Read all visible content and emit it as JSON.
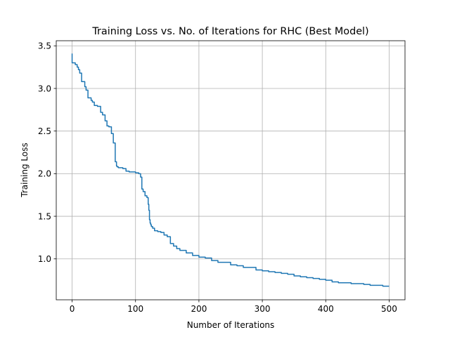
{
  "chart_data": {
    "type": "line",
    "title": "Training Loss vs. No. of Iterations for RHC (Best Model)",
    "xlabel": "Number of Iterations",
    "ylabel": "Training Loss",
    "xlim": [
      -25,
      525
    ],
    "ylim": [
      0.52,
      3.56
    ],
    "xticks": [
      0,
      100,
      200,
      300,
      400,
      500
    ],
    "xtick_labels": [
      "0",
      "100",
      "200",
      "300",
      "400",
      "500"
    ],
    "yticks": [
      1.0,
      1.5,
      2.0,
      2.5,
      3.0,
      3.5
    ],
    "ytick_labels": [
      "1.0",
      "1.5",
      "2.0",
      "2.5",
      "3.0",
      "3.5"
    ],
    "grid": true,
    "line_color": "#1f77b4",
    "series": [
      {
        "x": [
          0,
          0,
          2,
          5,
          8,
          10,
          12,
          15,
          20,
          22,
          25,
          30,
          32,
          35,
          40,
          45,
          48,
          52,
          55,
          58,
          62,
          65,
          68,
          70,
          71,
          72,
          73,
          75,
          80,
          85,
          90,
          95,
          100,
          105,
          108,
          110,
          112,
          115,
          118,
          120,
          121,
          122,
          123,
          124,
          125,
          127,
          130,
          135,
          140,
          145,
          150,
          155,
          160,
          165,
          170,
          180,
          190,
          200,
          210,
          220,
          230,
          240,
          250,
          260,
          270,
          280,
          290,
          300,
          310,
          320,
          330,
          340,
          350,
          360,
          370,
          380,
          390,
          400,
          410,
          420,
          430,
          440,
          450,
          460,
          470,
          480,
          490,
          500
        ],
        "values": [
          3.41,
          3.3,
          3.3,
          3.28,
          3.25,
          3.22,
          3.18,
          3.08,
          3.02,
          2.98,
          2.89,
          2.86,
          2.84,
          2.8,
          2.79,
          2.72,
          2.69,
          2.62,
          2.56,
          2.55,
          2.47,
          2.36,
          2.14,
          2.09,
          2.08,
          2.08,
          2.07,
          2.07,
          2.06,
          2.03,
          2.02,
          2.02,
          2.01,
          2.0,
          1.96,
          1.82,
          1.79,
          1.74,
          1.72,
          1.64,
          1.57,
          1.46,
          1.42,
          1.4,
          1.38,
          1.36,
          1.33,
          1.32,
          1.31,
          1.28,
          1.26,
          1.18,
          1.15,
          1.12,
          1.1,
          1.07,
          1.04,
          1.02,
          1.01,
          0.98,
          0.96,
          0.96,
          0.93,
          0.92,
          0.9,
          0.9,
          0.87,
          0.86,
          0.85,
          0.84,
          0.83,
          0.82,
          0.8,
          0.79,
          0.78,
          0.77,
          0.76,
          0.75,
          0.73,
          0.72,
          0.72,
          0.71,
          0.71,
          0.7,
          0.69,
          0.69,
          0.68,
          0.68
        ]
      }
    ]
  }
}
